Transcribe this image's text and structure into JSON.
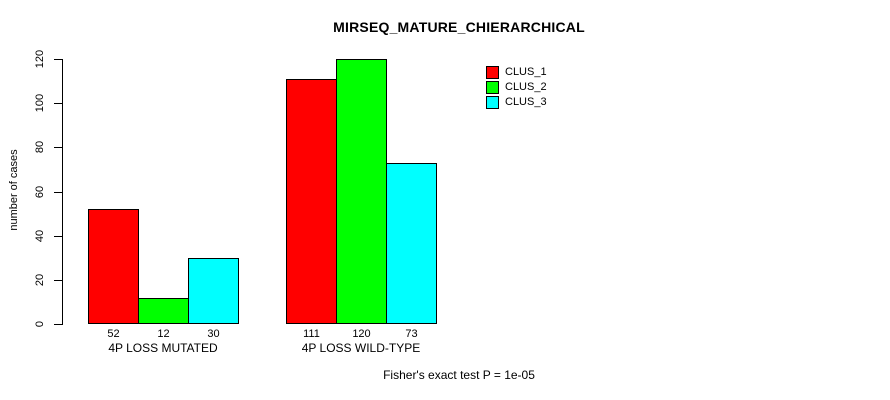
{
  "title": "MIRSEQ_MATURE_CHIERARCHICAL",
  "footer": "Fisher's exact test P = 1e-05",
  "colors": {
    "background": "#FFFFFF",
    "axis": "#000000",
    "text": "#000000",
    "clus_1": "#FF0000",
    "clus_2": "#00FF00",
    "clus_3": "#00FFFF"
  },
  "chart_data": {
    "type": "bar",
    "categories": [
      "4P LOSS MUTATED",
      "4P LOSS WILD-TYPE"
    ],
    "series": [
      {
        "name": "CLUS_1",
        "color": "#FF0000",
        "values": [
          52,
          111
        ]
      },
      {
        "name": "CLUS_2",
        "color": "#00FF00",
        "values": [
          12,
          120
        ]
      },
      {
        "name": "CLUS_3",
        "color": "#00FFFF",
        "values": [
          30,
          73
        ]
      }
    ],
    "title": "MIRSEQ_MATURE_CHIERARCHICAL",
    "xlabel": "",
    "ylabel": "number of cases",
    "ylim": [
      0,
      120
    ],
    "yticks": [
      0,
      20,
      40,
      60,
      80,
      100,
      120
    ],
    "bar_value_labels": [
      [
        52,
        12,
        30
      ],
      [
        111,
        120,
        73
      ]
    ],
    "legend": {
      "position": "top-right",
      "entries": [
        "CLUS_1",
        "CLUS_2",
        "CLUS_3"
      ]
    },
    "grid": false,
    "annotation": "Fisher's exact test P = 1e-05"
  }
}
